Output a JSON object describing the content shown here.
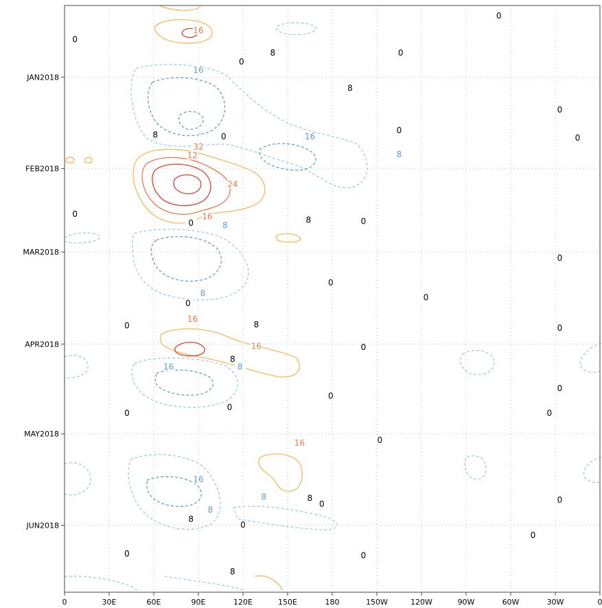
{
  "chart_data": {
    "type": "contour",
    "title": "",
    "xlabel": "",
    "ylabel": "",
    "x_ticks": [
      "0",
      "30E",
      "60E",
      "90E",
      "120E",
      "150E",
      "180",
      "150W",
      "120W",
      "90W",
      "60W",
      "30W",
      "0"
    ],
    "y_ticks": [
      "JAN2018",
      "FEB2018",
      "MAR2018",
      "APR2018",
      "MAY2018",
      "JUN2018"
    ],
    "xlim_deg_east": [
      0,
      360
    ],
    "grid": true,
    "colors": {
      "negative": "#9dcbeb",
      "negative_strong": "#5b9fd6",
      "positive": "#f7b85a",
      "positive_mid": "#ec7a4a",
      "positive_strong": "#d9432d",
      "zero_label": "#000000",
      "frame": "#444444"
    },
    "contour_labels": [
      {
        "text": "16",
        "lon": 90,
        "row": 0.045,
        "sign": "pos"
      },
      {
        "text": "0",
        "lon": 7,
        "row": 0.06,
        "sign": "zero"
      },
      {
        "text": "0",
        "lon": 292,
        "row": 0.02,
        "sign": "zero"
      },
      {
        "text": "8",
        "lon": 140,
        "row": 0.083,
        "sign": "zero"
      },
      {
        "text": "0",
        "lon": 226,
        "row": 0.083,
        "sign": "zero"
      },
      {
        "text": "0",
        "lon": 119,
        "row": 0.098,
        "sign": "zero"
      },
      {
        "text": "16",
        "lon": 90,
        "row": 0.112,
        "sign": "neg"
      },
      {
        "text": "8",
        "lon": 192,
        "row": 0.143,
        "sign": "zero"
      },
      {
        "text": "0",
        "lon": 333,
        "row": 0.18,
        "sign": "zero"
      },
      {
        "text": "0",
        "lon": 225,
        "row": 0.215,
        "sign": "zero"
      },
      {
        "text": "0",
        "lon": 345,
        "row": 0.228,
        "sign": "zero"
      },
      {
        "text": "8",
        "lon": 61,
        "row": 0.223,
        "sign": "zero"
      },
      {
        "text": "0",
        "lon": 107,
        "row": 0.226,
        "sign": "zero"
      },
      {
        "text": "16",
        "lon": 165,
        "row": 0.226,
        "sign": "neg"
      },
      {
        "text": "12",
        "lon": 86,
        "row": 0.258,
        "sign": "pos"
      },
      {
        "text": "32",
        "lon": 90,
        "row": 0.243,
        "sign": "pos"
      },
      {
        "text": "8",
        "lon": 225,
        "row": 0.256,
        "sign": "neg"
      },
      {
        "text": "24",
        "lon": 113,
        "row": 0.307,
        "sign": "pos"
      },
      {
        "text": "0",
        "lon": 7,
        "row": 0.358,
        "sign": "zero"
      },
      {
        "text": "0",
        "lon": 85,
        "row": 0.373,
        "sign": "zero"
      },
      {
        "text": "16",
        "lon": 96,
        "row": 0.362,
        "sign": "pos"
      },
      {
        "text": "8",
        "lon": 108,
        "row": 0.377,
        "sign": "neg"
      },
      {
        "text": "8",
        "lon": 164,
        "row": 0.368,
        "sign": "zero"
      },
      {
        "text": "0",
        "lon": 201,
        "row": 0.37,
        "sign": "zero"
      },
      {
        "text": "0",
        "lon": 333,
        "row": 0.433,
        "sign": "zero"
      },
      {
        "text": "0",
        "lon": 179,
        "row": 0.475,
        "sign": "zero"
      },
      {
        "text": "8",
        "lon": 93,
        "row": 0.493,
        "sign": "neg"
      },
      {
        "text": "0",
        "lon": 243,
        "row": 0.5,
        "sign": "zero"
      },
      {
        "text": "0",
        "lon": 83,
        "row": 0.51,
        "sign": "zero"
      },
      {
        "text": "16",
        "lon": 86,
        "row": 0.537,
        "sign": "pos"
      },
      {
        "text": "0",
        "lon": 42,
        "row": 0.548,
        "sign": "zero"
      },
      {
        "text": "8",
        "lon": 129,
        "row": 0.546,
        "sign": "zero"
      },
      {
        "text": "0",
        "lon": 333,
        "row": 0.552,
        "sign": "zero"
      },
      {
        "text": "16",
        "lon": 129,
        "row": 0.583,
        "sign": "pos"
      },
      {
        "text": "0",
        "lon": 201,
        "row": 0.585,
        "sign": "zero"
      },
      {
        "text": "8",
        "lon": 113,
        "row": 0.605,
        "sign": "zero"
      },
      {
        "text": "16",
        "lon": 70,
        "row": 0.618,
        "sign": "neg"
      },
      {
        "text": "8",
        "lon": 118,
        "row": 0.618,
        "sign": "neg"
      },
      {
        "text": "0",
        "lon": 333,
        "row": 0.655,
        "sign": "zero"
      },
      {
        "text": "0",
        "lon": 179,
        "row": 0.668,
        "sign": "zero"
      },
      {
        "text": "0",
        "lon": 111,
        "row": 0.687,
        "sign": "zero"
      },
      {
        "text": "0",
        "lon": 42,
        "row": 0.697,
        "sign": "zero"
      },
      {
        "text": "0",
        "lon": 326,
        "row": 0.697,
        "sign": "zero"
      },
      {
        "text": "0",
        "lon": 212,
        "row": 0.743,
        "sign": "zero"
      },
      {
        "text": "16",
        "lon": 158,
        "row": 0.748,
        "sign": "pos"
      },
      {
        "text": "16",
        "lon": 90,
        "row": 0.81,
        "sign": "neg"
      },
      {
        "text": "8",
        "lon": 134,
        "row": 0.84,
        "sign": "neg"
      },
      {
        "text": "8",
        "lon": 165,
        "row": 0.842,
        "sign": "zero"
      },
      {
        "text": "0",
        "lon": 173,
        "row": 0.852,
        "sign": "zero"
      },
      {
        "text": "0",
        "lon": 333,
        "row": 0.845,
        "sign": "zero"
      },
      {
        "text": "8",
        "lon": 98,
        "row": 0.862,
        "sign": "neg"
      },
      {
        "text": "8",
        "lon": 85,
        "row": 0.878,
        "sign": "zero"
      },
      {
        "text": "0",
        "lon": 120,
        "row": 0.888,
        "sign": "zero"
      },
      {
        "text": "0",
        "lon": 315,
        "row": 0.905,
        "sign": "zero"
      },
      {
        "text": "0",
        "lon": 42,
        "row": 0.937,
        "sign": "zero"
      },
      {
        "text": "0",
        "lon": 201,
        "row": 0.94,
        "sign": "zero"
      },
      {
        "text": "8",
        "lon": 113,
        "row": 0.967,
        "sign": "zero"
      }
    ]
  }
}
